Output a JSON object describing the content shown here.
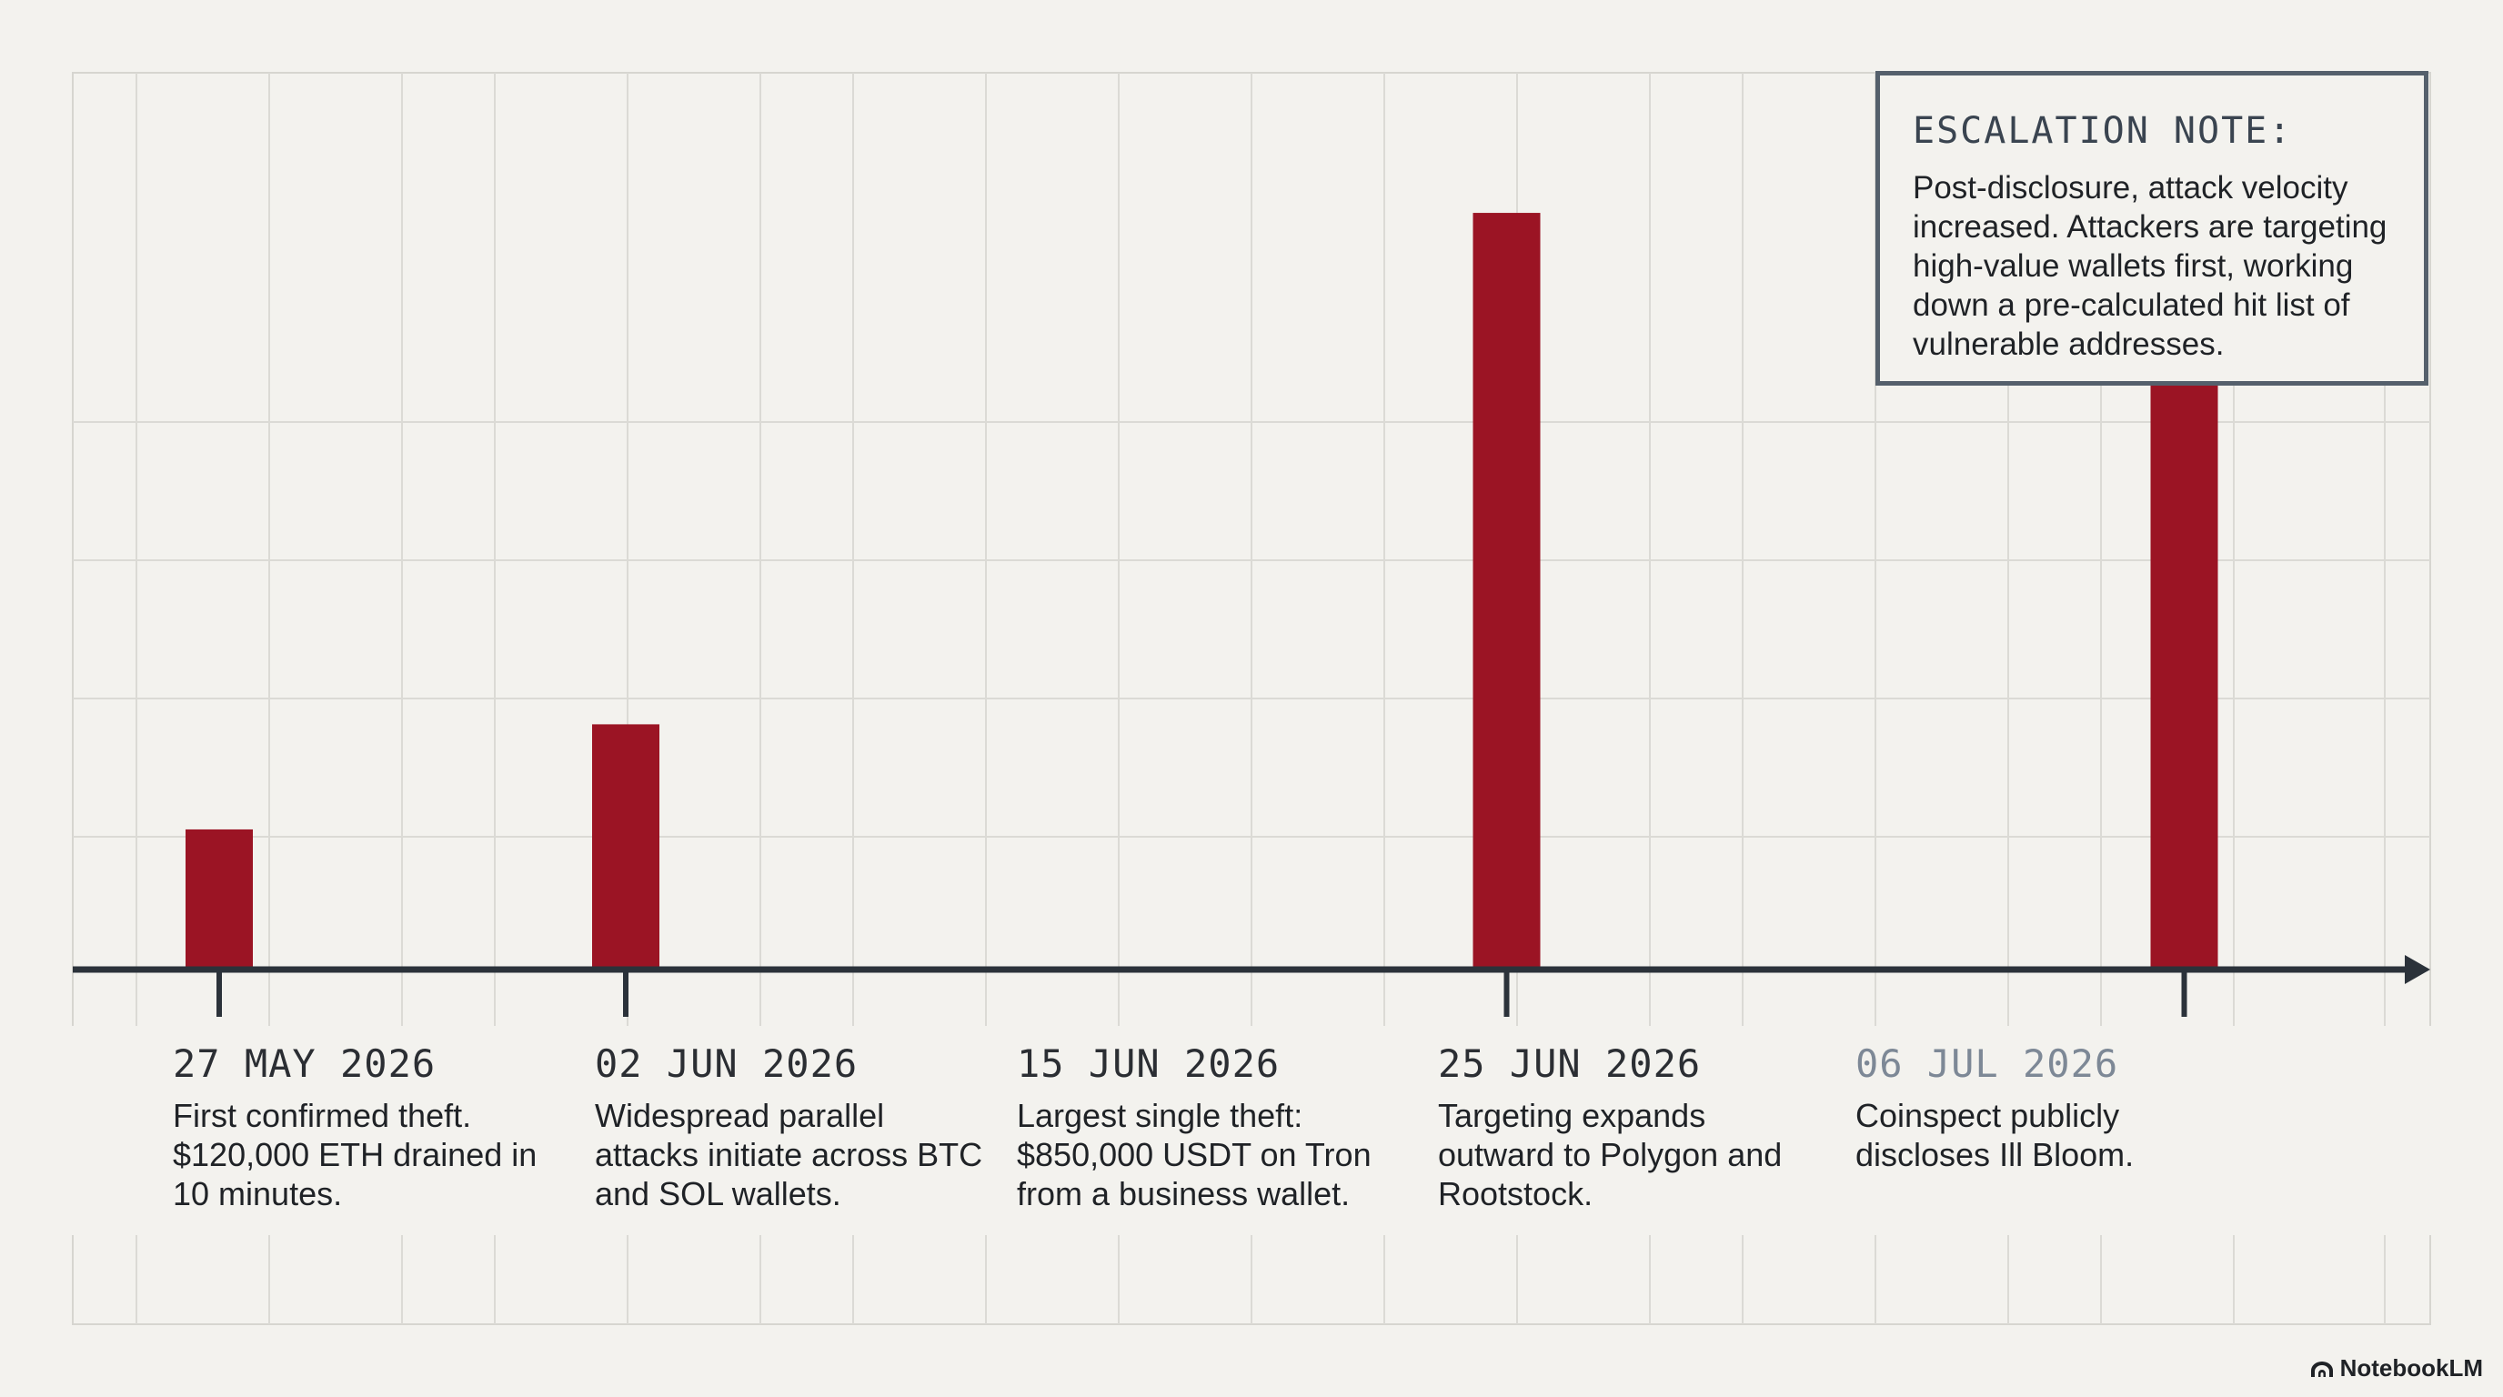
{
  "chart_data": {
    "type": "bar",
    "x_type": "date",
    "categories": [
      "27 MAY 2026",
      "02 JUN 2026",
      "15 JUN 2026",
      "25 JUN 2026"
    ],
    "x": [
      "2026-05-27",
      "2026-06-02",
      "2026-06-15",
      "2026-06-25"
    ],
    "values": [
      1,
      1.75,
      5.4,
      4.8
    ],
    "y_axis_visible": false,
    "ylim": [
      0,
      6.4
    ],
    "xlim": [
      "2026-05-20",
      "2026-07-31"
    ],
    "grid": true,
    "bar_color": "#9b1424",
    "axis_color": "#2b323a",
    "events": [
      {
        "date": "27 MAY 2026",
        "description": "First confirmed theft. $120,000 ETH drained in 10 minutes."
      },
      {
        "date": "02 JUN 2026",
        "description": "Widespread parallel attacks initiate across BTC and SOL wallets."
      },
      {
        "date": "15 JUN 2026",
        "description": "Largest single theft: $850,000 USDT on Tron from a business wallet."
      },
      {
        "date": "25 JUN 2026",
        "description": "Targeting expands outward to Polygon and Rootstock."
      },
      {
        "date": "06 JUL 2026",
        "description": "Coinspect publicly discloses Ill Bloom."
      }
    ],
    "marker_line": {
      "x": "2026-07-06",
      "style": "dashed",
      "color": "#55606c"
    },
    "annotation": {
      "title": "ESCALATION NOTE:",
      "text": "Post-disclosure, attack velocity increased. Attackers are targeting high-value wallets first, working down a pre-calculated hit list of vulnerable addresses."
    }
  },
  "brand": {
    "label": "NotebookLM"
  }
}
